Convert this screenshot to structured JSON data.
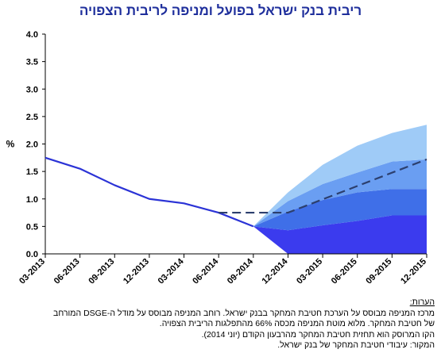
{
  "chart_data": {
    "type": "area",
    "title": "ריבית בנק ישראל בפועל ומניפה לריבית הצפויה",
    "ylabel": "%",
    "ylim": [
      0,
      4
    ],
    "yticks": [
      "0.0",
      "0.5",
      "1.0",
      "1.5",
      "2.0",
      "2.5",
      "3.0",
      "3.5",
      "4.0"
    ],
    "ytick_values": [
      0,
      0.5,
      1,
      1.5,
      2,
      2.5,
      3,
      3.5,
      4
    ],
    "categories": [
      "03-2013",
      "06-2013",
      "09-2013",
      "12-2013",
      "03-2014",
      "06-2014",
      "09-2014",
      "12-2014",
      "03-2015",
      "06-2015",
      "09-2015",
      "12-2015"
    ],
    "grid": false,
    "actual": {
      "x_index": [
        0,
        1,
        2,
        3,
        4,
        5,
        6
      ],
      "values": [
        1.75,
        1.55,
        1.25,
        1.0,
        0.92,
        0.75,
        0.5
      ]
    },
    "fan": {
      "x_index": [
        6,
        7,
        8,
        9,
        10,
        11
      ],
      "bands": [
        {
          "lower": [
            0.5,
            0.0,
            0.0,
            0.0,
            0.0,
            0.0
          ],
          "upper": [
            0.5,
            0.43,
            0.52,
            0.6,
            0.7,
            0.7
          ],
          "color": "#3b3bee"
        },
        {
          "lower": [
            0.5,
            0.43,
            0.52,
            0.6,
            0.7,
            0.7
          ],
          "upper": [
            0.5,
            0.77,
            0.98,
            1.12,
            1.18,
            1.18
          ],
          "color": "#3f6fe8"
        },
        {
          "lower": [
            0.5,
            0.77,
            0.98,
            1.12,
            1.18,
            1.18
          ],
          "upper": [
            0.5,
            0.96,
            1.27,
            1.48,
            1.68,
            1.72
          ],
          "color": "#6a9ef2"
        },
        {
          "lower": [
            0.5,
            0.96,
            1.27,
            1.48,
            1.68,
            1.72
          ],
          "upper": [
            0.5,
            1.12,
            1.62,
            1.97,
            2.2,
            2.35
          ],
          "color": "#9fcbf7"
        },
        {
          "lower": [
            0.5,
            0.0,
            0.0,
            0.0,
            0.0,
            0.0
          ],
          "upper": [
            0.5,
            0.0,
            0.0,
            0.0,
            0.0,
            0.0
          ],
          "color": "#3b3bee"
        }
      ]
    },
    "median_path": {
      "x": [
        5,
        6,
        7,
        11
      ],
      "values": [
        0.75,
        0.75,
        0.75,
        1.72
      ]
    },
    "colors": {
      "actual_line": "#2b33d6",
      "median_line": "#2c3f6e",
      "axis": "#000000",
      "title": "#1f2f9c"
    }
  },
  "notes": {
    "heading": "הערות:",
    "lines": [
      "מרכז המניפה מבוסס על הערכת חטיבת המחקר בבנק ישראל. רוחב המניפה מבוסס על מודל ה-DSGE המורחב",
      "של חטיבת המחקר. מלוא מוטת המניפה מכסה 66% מהתפלגות הריבית הצפויה.",
      "הקו המרוסק הוא תחזית חטיבת המחקר מהרבעון הקודם (יוני 2014).",
      "המקור: עיבודי חטיבת המחקר של בנק ישראל."
    ]
  }
}
